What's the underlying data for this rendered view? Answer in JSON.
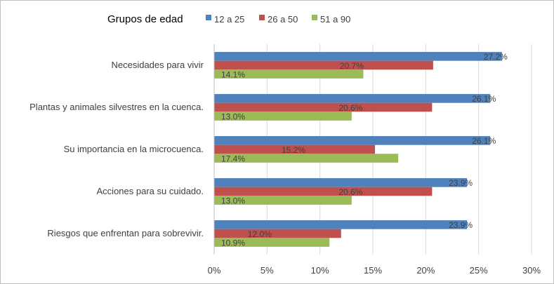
{
  "chart_data": {
    "type": "bar",
    "orientation": "horizontal",
    "legend_title": "Grupos de edad",
    "legend_position": "top",
    "categories": [
      "Necesidades para vivir",
      "Plantas y animales silvestres en la cuenca.",
      "Su importancia en la microcuenca.",
      "Acciones para su cuidado.",
      "Riesgos que enfrentan para sobrevivir."
    ],
    "series": [
      {
        "name": "12 a 25",
        "color": "#4f81bd",
        "values": [
          27.2,
          26.1,
          26.1,
          23.9,
          23.9
        ],
        "labels": [
          "27.2%",
          "26.1%",
          "26.1%",
          "23.9%",
          "23.9%"
        ]
      },
      {
        "name": "26 a 50",
        "color": "#c0504d",
        "values": [
          20.7,
          20.6,
          15.2,
          20.6,
          12.0
        ],
        "labels": [
          "20.7%",
          "20.6%",
          "15.2%",
          "20.6%",
          "12.0%"
        ]
      },
      {
        "name": "51 a 90",
        "color": "#9bbb59",
        "values": [
          14.1,
          13.0,
          17.4,
          13.0,
          10.9
        ],
        "labels": [
          "14.1%",
          "13.0%",
          "17.4%",
          "13.0%",
          "10.9%"
        ]
      }
    ],
    "xlim": [
      0,
      30
    ],
    "xticks": [
      "0%",
      "5%",
      "10%",
      "15%",
      "20%",
      "25%",
      "30%"
    ],
    "grid": true,
    "gridline_color": "#d9d9d9"
  }
}
